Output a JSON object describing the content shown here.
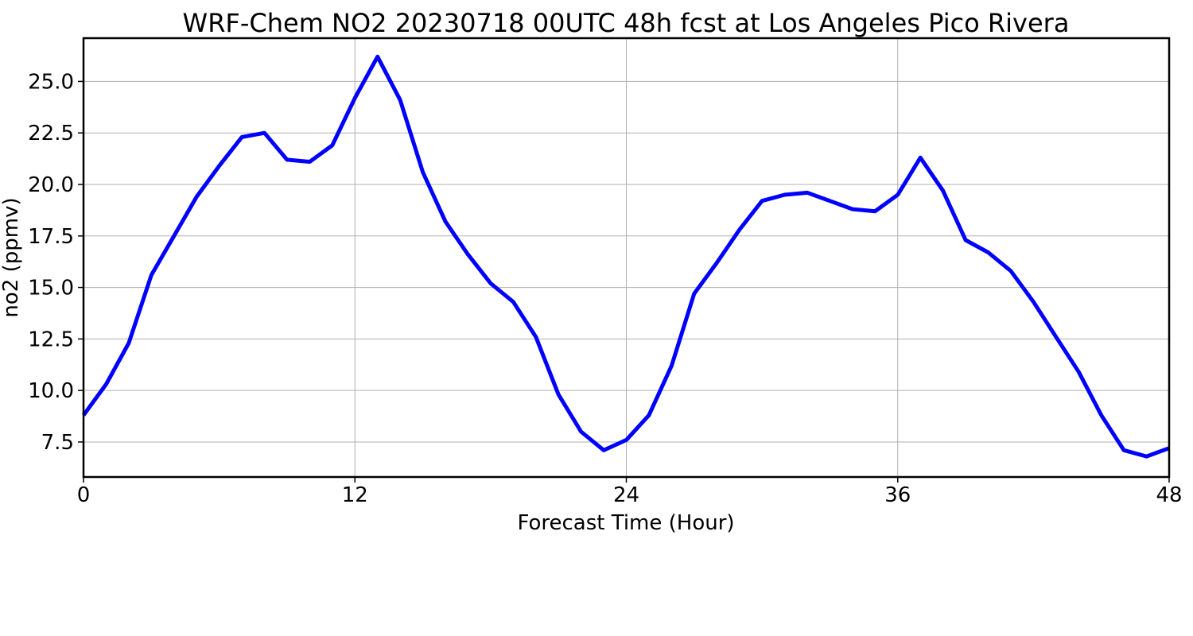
{
  "chart_data": {
    "type": "line",
    "title": "WRF-Chem NO2  20230718 00UTC 48h fcst at Los Angeles Pico Rivera",
    "xlabel": "Forecast Time (Hour)",
    "ylabel": "no2  (ppmv)",
    "xlim": [
      0,
      48
    ],
    "ylim": [
      5.8,
      27.1
    ],
    "xticks": [
      0,
      12,
      24,
      36,
      48
    ],
    "xtick_labels": [
      "0",
      "12",
      "24",
      "36",
      "48"
    ],
    "yticks": [
      7.5,
      10.0,
      12.5,
      15.0,
      17.5,
      20.0,
      22.5,
      25.0
    ],
    "ytick_labels": [
      "7.5",
      "10.0",
      "12.5",
      "15.0",
      "17.5",
      "20.0",
      "22.5",
      "25.0"
    ],
    "grid": true,
    "series": [
      {
        "color": "#0000ff",
        "x": [
          0,
          1,
          2,
          3,
          4,
          5,
          6,
          7,
          8,
          9,
          10,
          11,
          12,
          13,
          14,
          15,
          16,
          17,
          18,
          19,
          20,
          21,
          22,
          23,
          24,
          25,
          26,
          27,
          28,
          29,
          30,
          31,
          32,
          33,
          34,
          35,
          36,
          37,
          38,
          39,
          40,
          41,
          42,
          43,
          44,
          45,
          46,
          47,
          48
        ],
        "values": [
          8.8,
          10.3,
          12.3,
          15.6,
          17.5,
          19.4,
          20.9,
          22.3,
          22.5,
          21.2,
          21.1,
          21.9,
          24.2,
          26.2,
          24.1,
          20.6,
          18.2,
          16.6,
          15.2,
          14.3,
          12.6,
          9.8,
          8.0,
          7.1,
          7.6,
          8.8,
          11.2,
          14.7,
          16.2,
          17.8,
          19.2,
          19.5,
          19.6,
          19.2,
          18.8,
          18.7,
          19.5,
          21.3,
          19.7,
          17.3,
          16.7,
          15.8,
          14.3,
          12.6,
          10.9,
          8.8,
          7.1,
          6.8,
          7.2
        ]
      }
    ]
  }
}
